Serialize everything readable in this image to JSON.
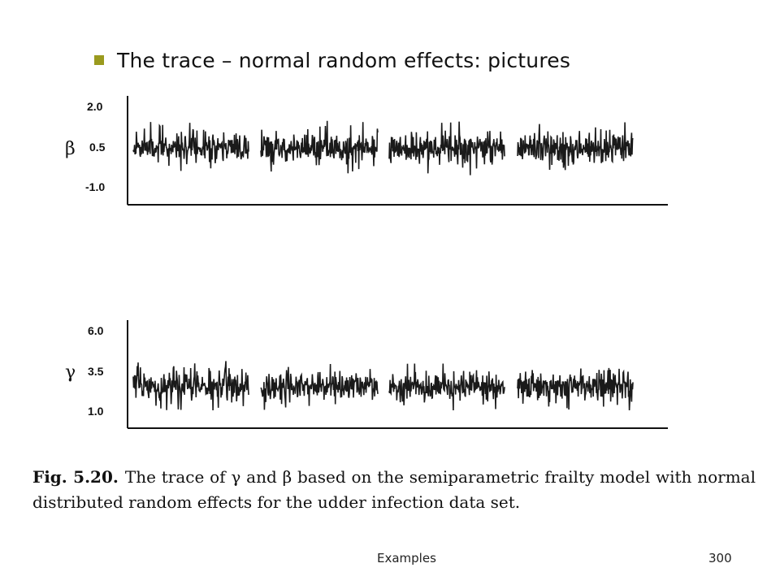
{
  "slide": {
    "title": "The trace – normal random effects: pictures",
    "bullet_color": "#9a9a1e",
    "footer_center": "Examples",
    "page_number": "300"
  },
  "caption": {
    "label": "Fig. 5.20.",
    "text": "The trace of γ and β based on the semiparametric frailty model with normal distributed random effects for the udder infection data set."
  },
  "chart_data": [
    {
      "type": "line",
      "title": "",
      "ylabel": "β",
      "yticks": [
        "2.0",
        "0.5",
        "-1.0"
      ],
      "ytick_values": [
        2.0,
        0.5,
        -1.0
      ],
      "ylim": [
        -1.5,
        2.3
      ],
      "segments": 4,
      "series": [
        {
          "center": 0.5,
          "spread": 0.35,
          "max_spike": 1.9,
          "min_spike": -0.95
        }
      ],
      "line_color": "#1a1a1a"
    },
    {
      "type": "line",
      "title": "",
      "ylabel": "γ",
      "yticks": [
        "6.0",
        "3.5",
        "1.0"
      ],
      "ytick_values": [
        6.0,
        3.5,
        1.0
      ],
      "ylim": [
        0.5,
        6.5
      ],
      "segments": 4,
      "series": [
        {
          "center": 2.6,
          "spread": 0.55,
          "max_spike": 5.9,
          "min_spike": 1.1
        }
      ],
      "line_color": "#1a1a1a"
    }
  ]
}
